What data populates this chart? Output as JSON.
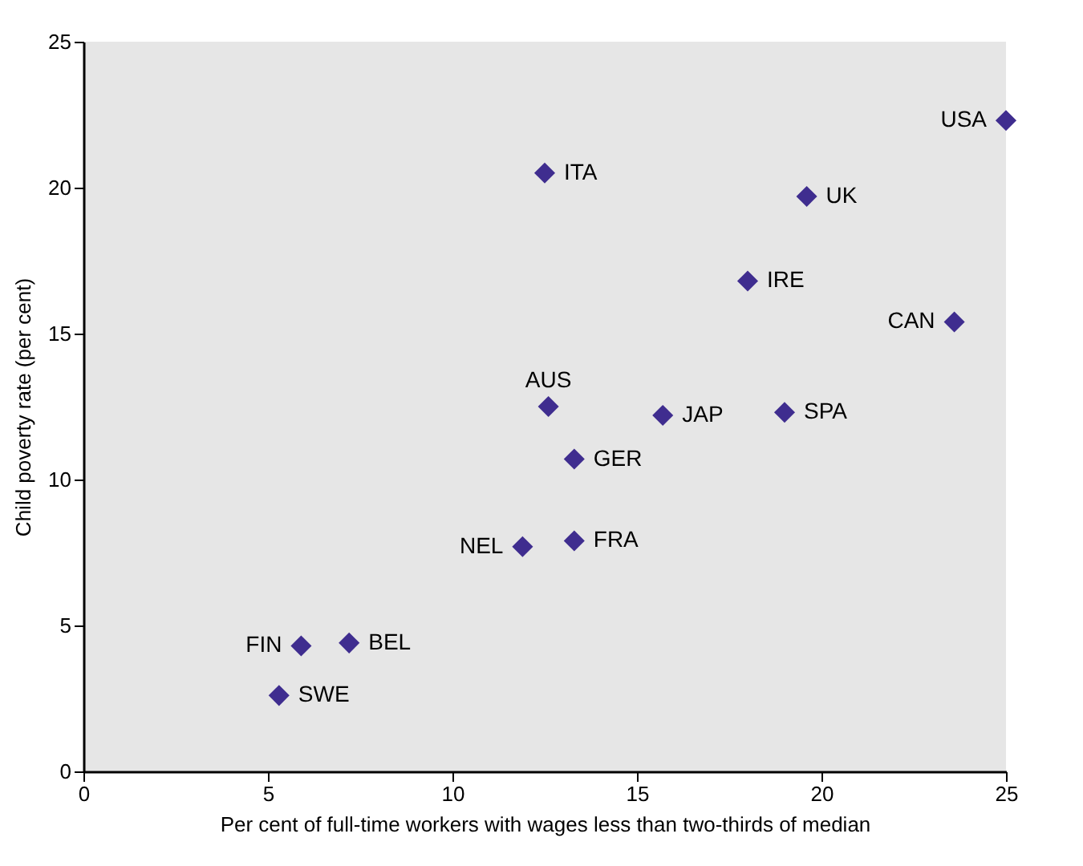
{
  "chart_data": {
    "type": "scatter",
    "xlabel": "Per cent of full-time workers with wages less than two-thirds of median",
    "ylabel": "Child poverty rate (per cent)",
    "x": [
      25,
      12.5,
      19.6,
      18.0,
      23.6,
      12.6,
      15.7,
      19.0,
      13.3,
      11.9,
      13.3,
      5.9,
      7.2,
      5.3
    ],
    "series": [
      {
        "color": "#3f2d8f",
        "values": [
          22.3,
          20.5,
          19.7,
          16.8,
          15.4,
          12.5,
          12.2,
          12.3,
          10.7,
          7.7,
          7.9,
          4.3,
          4.4,
          2.6
        ]
      }
    ],
    "annotations": [
      {
        "text": "USA",
        "x": 25,
        "y": 22.3
      },
      {
        "text": "ITA",
        "x": 12.5,
        "y": 20.5
      },
      {
        "text": "UK",
        "x": 19.6,
        "y": 19.7
      },
      {
        "text": "IRE",
        "x": 18.0,
        "y": 16.8
      },
      {
        "text": "CAN",
        "x": 23.6,
        "y": 15.4
      },
      {
        "text": "AUS",
        "x": 12.6,
        "y": 12.5
      },
      {
        "text": "JAP",
        "x": 15.7,
        "y": 12.2
      },
      {
        "text": "SPA",
        "x": 19.0,
        "y": 12.3
      },
      {
        "text": "GER",
        "x": 13.3,
        "y": 10.7
      },
      {
        "text": "NEL",
        "x": 11.9,
        "y": 7.7
      },
      {
        "text": "FRA",
        "x": 13.3,
        "y": 7.9
      },
      {
        "text": "FIN",
        "x": 5.9,
        "y": 4.3
      },
      {
        "text": "BEL",
        "x": 7.2,
        "y": 4.4
      },
      {
        "text": "SWE",
        "x": 5.3,
        "y": 2.6
      }
    ],
    "xlim": [
      0,
      25
    ],
    "ylim": [
      0,
      25
    ],
    "xticks": [
      0,
      5,
      10,
      15,
      20,
      25
    ],
    "yticks": [
      0,
      5,
      10,
      15,
      20,
      25
    ],
    "grid": false,
    "marker": "diamond",
    "legend": false
  }
}
